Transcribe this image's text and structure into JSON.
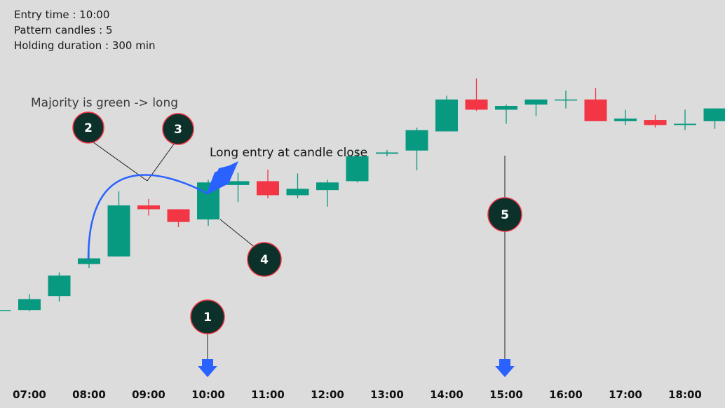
{
  "info": {
    "entry_time": "Entry time : 10:00",
    "pattern_candles": "Pattern candles : 5",
    "holding_duration": "Holding duration : 300 min"
  },
  "annotations": {
    "majority_note": "Majority is green -> long",
    "entry_note": "Long entry at candle close",
    "badges": [
      "1",
      "2",
      "3",
      "4",
      "5"
    ]
  },
  "colors": {
    "background": "#dcdcdc",
    "bull": "#089981",
    "bear": "#f23645",
    "arrow": "#2962ff",
    "badge_fill": "#0c302a",
    "badge_stroke": "#f23645"
  },
  "chart_data": {
    "type": "candlestick",
    "x_tick_labels": [
      "07:00",
      "08:00",
      "09:00",
      "10:00",
      "11:00",
      "12:00",
      "13:00",
      "14:00",
      "15:00",
      "16:00",
      "17:00",
      "18:00"
    ],
    "x_tick_step_hours": 1,
    "candle_interval_min": 30,
    "y_axis": "none",
    "grid": false,
    "candles": [
      {
        "t": "06:30",
        "o": 3.6,
        "h": 3.6,
        "l": 3.6,
        "c": 3.6
      },
      {
        "t": "07:00",
        "o": 3.6,
        "h": 6.1,
        "l": 3.4,
        "c": 5.3
      },
      {
        "t": "07:30",
        "o": 5.8,
        "h": 9.5,
        "l": 4.9,
        "c": 9.0
      },
      {
        "t": "08:00",
        "o": 10.8,
        "h": 13.3,
        "l": 10.2,
        "c": 11.7
      },
      {
        "t": "08:30",
        "o": 12.0,
        "h": 22.2,
        "l": 12.0,
        "c": 20.0
      },
      {
        "t": "09:00",
        "o": 20.0,
        "h": 21.0,
        "l": 18.4,
        "c": 19.4
      },
      {
        "t": "09:30",
        "o": 19.4,
        "h": 19.4,
        "l": 16.6,
        "c": 17.4
      },
      {
        "t": "10:00",
        "o": 17.8,
        "h": 24.0,
        "l": 16.8,
        "c": 23.6
      },
      {
        "t": "10:30",
        "o": 23.2,
        "h": 25.1,
        "l": 20.5,
        "c": 23.8
      },
      {
        "t": "11:00",
        "o": 23.8,
        "h": 25.6,
        "l": 21.1,
        "c": 21.6
      },
      {
        "t": "11:30",
        "o": 21.6,
        "h": 25.0,
        "l": 21.1,
        "c": 22.6
      },
      {
        "t": "12:00",
        "o": 22.4,
        "h": 24.0,
        "l": 19.8,
        "c": 23.6
      },
      {
        "t": "12:30",
        "o": 23.8,
        "h": 28.7,
        "l": 23.6,
        "c": 27.7
      },
      {
        "t": "13:00",
        "o": 28.1,
        "h": 28.7,
        "l": 27.7,
        "c": 28.3
      },
      {
        "t": "13:30",
        "o": 28.6,
        "h": 32.2,
        "l": 25.5,
        "c": 31.8
      },
      {
        "t": "14:00",
        "o": 31.6,
        "h": 37.2,
        "l": 31.6,
        "c": 36.6
      },
      {
        "t": "14:30",
        "o": 36.6,
        "h": 39.9,
        "l": 34.8,
        "c": 35.0
      },
      {
        "t": "15:00",
        "o": 35.0,
        "h": 35.8,
        "l": 32.8,
        "c": 35.6
      },
      {
        "t": "15:30",
        "o": 35.8,
        "h": 36.6,
        "l": 34.0,
        "c": 36.6
      },
      {
        "t": "16:00",
        "o": 36.6,
        "h": 38.0,
        "l": 35.2,
        "c": 36.6
      },
      {
        "t": "16:30",
        "o": 36.6,
        "h": 38.4,
        "l": 33.2,
        "c": 33.2
      },
      {
        "t": "17:00",
        "o": 33.2,
        "h": 35.0,
        "l": 32.6,
        "c": 33.6
      },
      {
        "t": "17:30",
        "o": 33.4,
        "h": 34.2,
        "l": 32.2,
        "c": 32.6
      },
      {
        "t": "18:00",
        "o": 32.6,
        "h": 35.0,
        "l": 31.8,
        "c": 32.8
      },
      {
        "t": "18:30",
        "o": 33.2,
        "h": 35.2,
        "l": 32.0,
        "c": 35.2
      }
    ]
  }
}
